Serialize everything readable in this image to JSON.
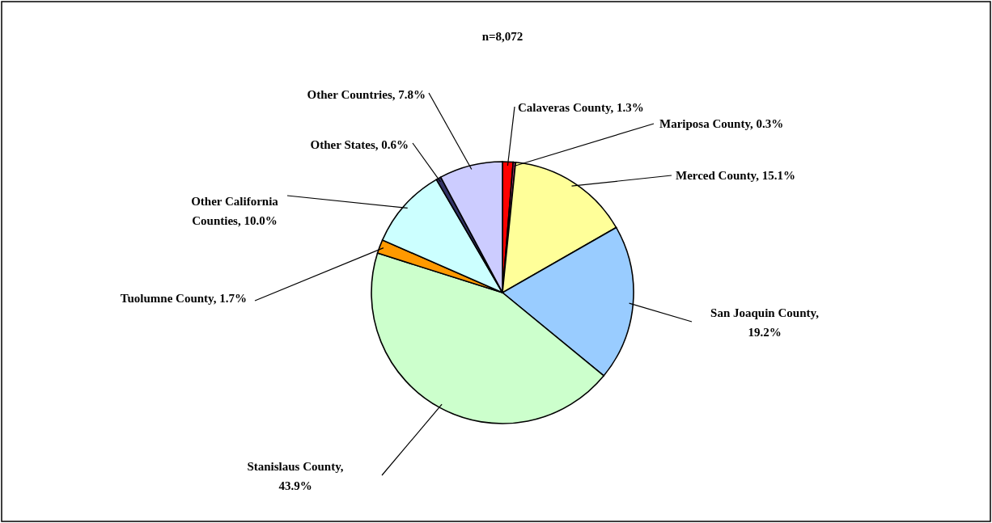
{
  "chart_data": {
    "type": "pie",
    "title": "n=8,072",
    "categories": [
      "Calaveras County",
      "Mariposa County",
      "Merced County",
      "San Joaquin County",
      "Stanislaus County",
      "Tuolumne County",
      "Other California Counties",
      "Other States",
      "Other Countries"
    ],
    "values": [
      1.3,
      0.3,
      15.1,
      19.2,
      43.9,
      1.7,
      10.0,
      0.6,
      7.8
    ],
    "value_labels": [
      ", 1.3%",
      ", 0.3%",
      ", 15.1%",
      ", 19.2%",
      ", 43.9%",
      ", 1.7%",
      ", 10.0%",
      ", 0.6%",
      ", 7.8%"
    ],
    "colors": [
      "#ff0000",
      "#993366",
      "#ffff99",
      "#99ccff",
      "#ccffcc",
      "#ff9900",
      "#ccffff",
      "#333366",
      "#ccccff"
    ]
  }
}
